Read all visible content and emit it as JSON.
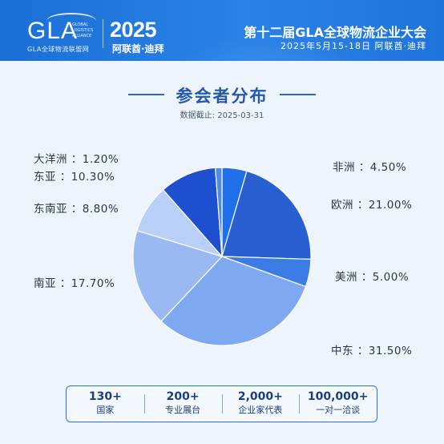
{
  "header": {
    "logo_text": "GLA",
    "logo_subtitle_en": "GLOBAL LOGISTICS ALLIANCE",
    "logo_subtitle_cn": "GLA全球物流联盟网",
    "year": "2025",
    "city": "阿联酋·迪拜",
    "conference_title": "第十二届GLA全球物流企业大会",
    "conference_date": "2025年5月15-18日  阿联酋·迪拜"
  },
  "page": {
    "title": "参会者分布",
    "data_date": "数据截止: 2025-03-31"
  },
  "chart_data": {
    "type": "pie",
    "title": "参会者分布",
    "subtitle": "数据截止: 2025-03-31",
    "start_angle_deg": 0,
    "direction": "clockwise",
    "slices": [
      {
        "name": "非洲",
        "value": 4.5,
        "label": "4.50%",
        "color": "#1e6fe8"
      },
      {
        "name": "欧洲",
        "value": 21.0,
        "label": "21.00%",
        "color": "#2a5fd2"
      },
      {
        "name": "美洲",
        "value": 5.0,
        "label": "5.00%",
        "color": "#3c7ce6"
      },
      {
        "name": "中东",
        "value": 31.5,
        "label": "31.50%",
        "color": "#7ea8f0"
      },
      {
        "name": "南亚",
        "value": 17.7,
        "label": "17.70%",
        "color": "#9ab9f3"
      },
      {
        "name": "东南亚",
        "value": 8.8,
        "label": "8.80%",
        "color": "#b8cff7"
      },
      {
        "name": "东亚",
        "value": 10.3,
        "label": "10.30%",
        "color": "#1d4fcf"
      },
      {
        "name": "大洋洲",
        "value": 1.2,
        "label": "1.20%",
        "color": "#4f8ce0"
      }
    ]
  },
  "stats": [
    {
      "value": "130+",
      "unit": "国家"
    },
    {
      "value": "200+",
      "unit": "专业展台"
    },
    {
      "value": "2,000+",
      "unit": "企业家代表"
    },
    {
      "value": "100,000+",
      "unit": "一对一洽谈"
    }
  ]
}
